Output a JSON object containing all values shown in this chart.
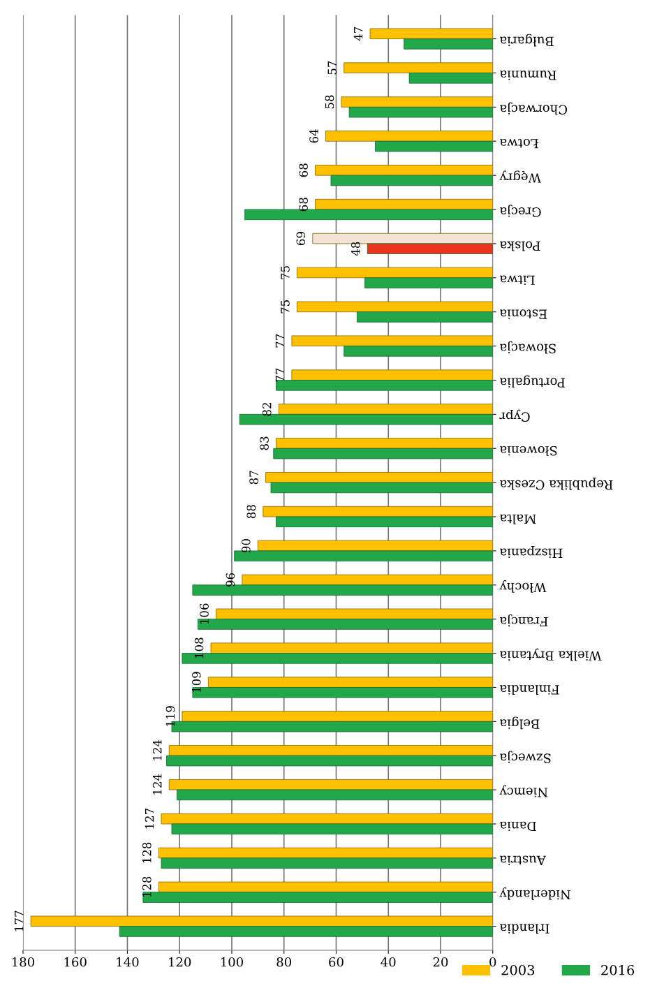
{
  "chart_data": {
    "type": "bar",
    "orientation": "horizontal",
    "categories": [
      "Bułgaria",
      "Rumunia",
      "Chorwacja",
      "Łotwa",
      "Węgry",
      "Grecja",
      "Polska",
      "Litwa",
      "Estonia",
      "Słowacja",
      "Portugalia",
      "Cypr",
      "Słowenia",
      "Republika Czeska",
      "Malta",
      "Hiszpania",
      "Włochy",
      "Francja",
      "Wielka Brytania",
      "Finlandia",
      "Belgia",
      "Szwecja",
      "Niemcy",
      "Dania",
      "Austria",
      "Niderlandy",
      "Irlandia"
    ],
    "series": [
      {
        "name": "2003",
        "color": "#ffc000",
        "colors": [
          "#ffc000",
          "#ffc000",
          "#ffc000",
          "#ffc000",
          "#ffc000",
          "#ffc000",
          "#f3e3d6",
          "#ffc000",
          "#ffc000",
          "#ffc000",
          "#ffc000",
          "#ffc000",
          "#ffc000",
          "#ffc000",
          "#ffc000",
          "#ffc000",
          "#ffc000",
          "#ffc000",
          "#ffc000",
          "#ffc000",
          "#ffc000",
          "#ffc000",
          "#ffc000",
          "#ffc000",
          "#ffc000",
          "#ffc000",
          "#ffc000"
        ],
        "values": [
          47,
          57,
          58,
          64,
          68,
          68,
          69,
          75,
          75,
          77,
          77,
          82,
          83,
          87,
          88,
          90,
          96,
          106,
          108,
          109,
          119,
          124,
          124,
          127,
          128,
          128,
          177
        ],
        "value_labels": [
          "47",
          "57",
          "58",
          "64",
          "68",
          "68",
          "69",
          "75",
          "75",
          "77",
          "77",
          "82",
          "83",
          "87",
          "88",
          "90",
          "96",
          "106",
          "108",
          "109",
          "119",
          "124",
          "124",
          "127",
          "128",
          "128",
          "177"
        ]
      },
      {
        "name": "2016",
        "color": "#22a84a",
        "colors": [
          "#22a84a",
          "#22a84a",
          "#22a84a",
          "#22a84a",
          "#22a84a",
          "#22a84a",
          "#e8341c",
          "#22a84a",
          "#22a84a",
          "#22a84a",
          "#22a84a",
          "#22a84a",
          "#22a84a",
          "#22a84a",
          "#22a84a",
          "#22a84a",
          "#22a84a",
          "#22a84a",
          "#22a84a",
          "#22a84a",
          "#22a84a",
          "#22a84a",
          "#22a84a",
          "#22a84a",
          "#22a84a",
          "#22a84a",
          "#22a84a"
        ],
        "values": [
          34,
          32,
          55,
          45,
          62,
          95,
          48,
          49,
          52,
          57,
          83,
          97,
          84,
          85,
          83,
          99,
          115,
          113,
          119,
          115,
          123,
          125,
          121,
          123,
          127,
          134,
          143
        ],
        "value_labels": [
          null,
          null,
          null,
          null,
          null,
          null,
          "48",
          null,
          null,
          null,
          null,
          null,
          null,
          null,
          null,
          null,
          null,
          null,
          null,
          null,
          null,
          null,
          null,
          null,
          null,
          null,
          null
        ]
      }
    ],
    "xlim": [
      180,
      0
    ],
    "xticks": [
      0,
      20,
      40,
      60,
      80,
      100,
      120,
      140,
      160,
      180
    ],
    "grid": "x",
    "legend": "bottom right"
  }
}
